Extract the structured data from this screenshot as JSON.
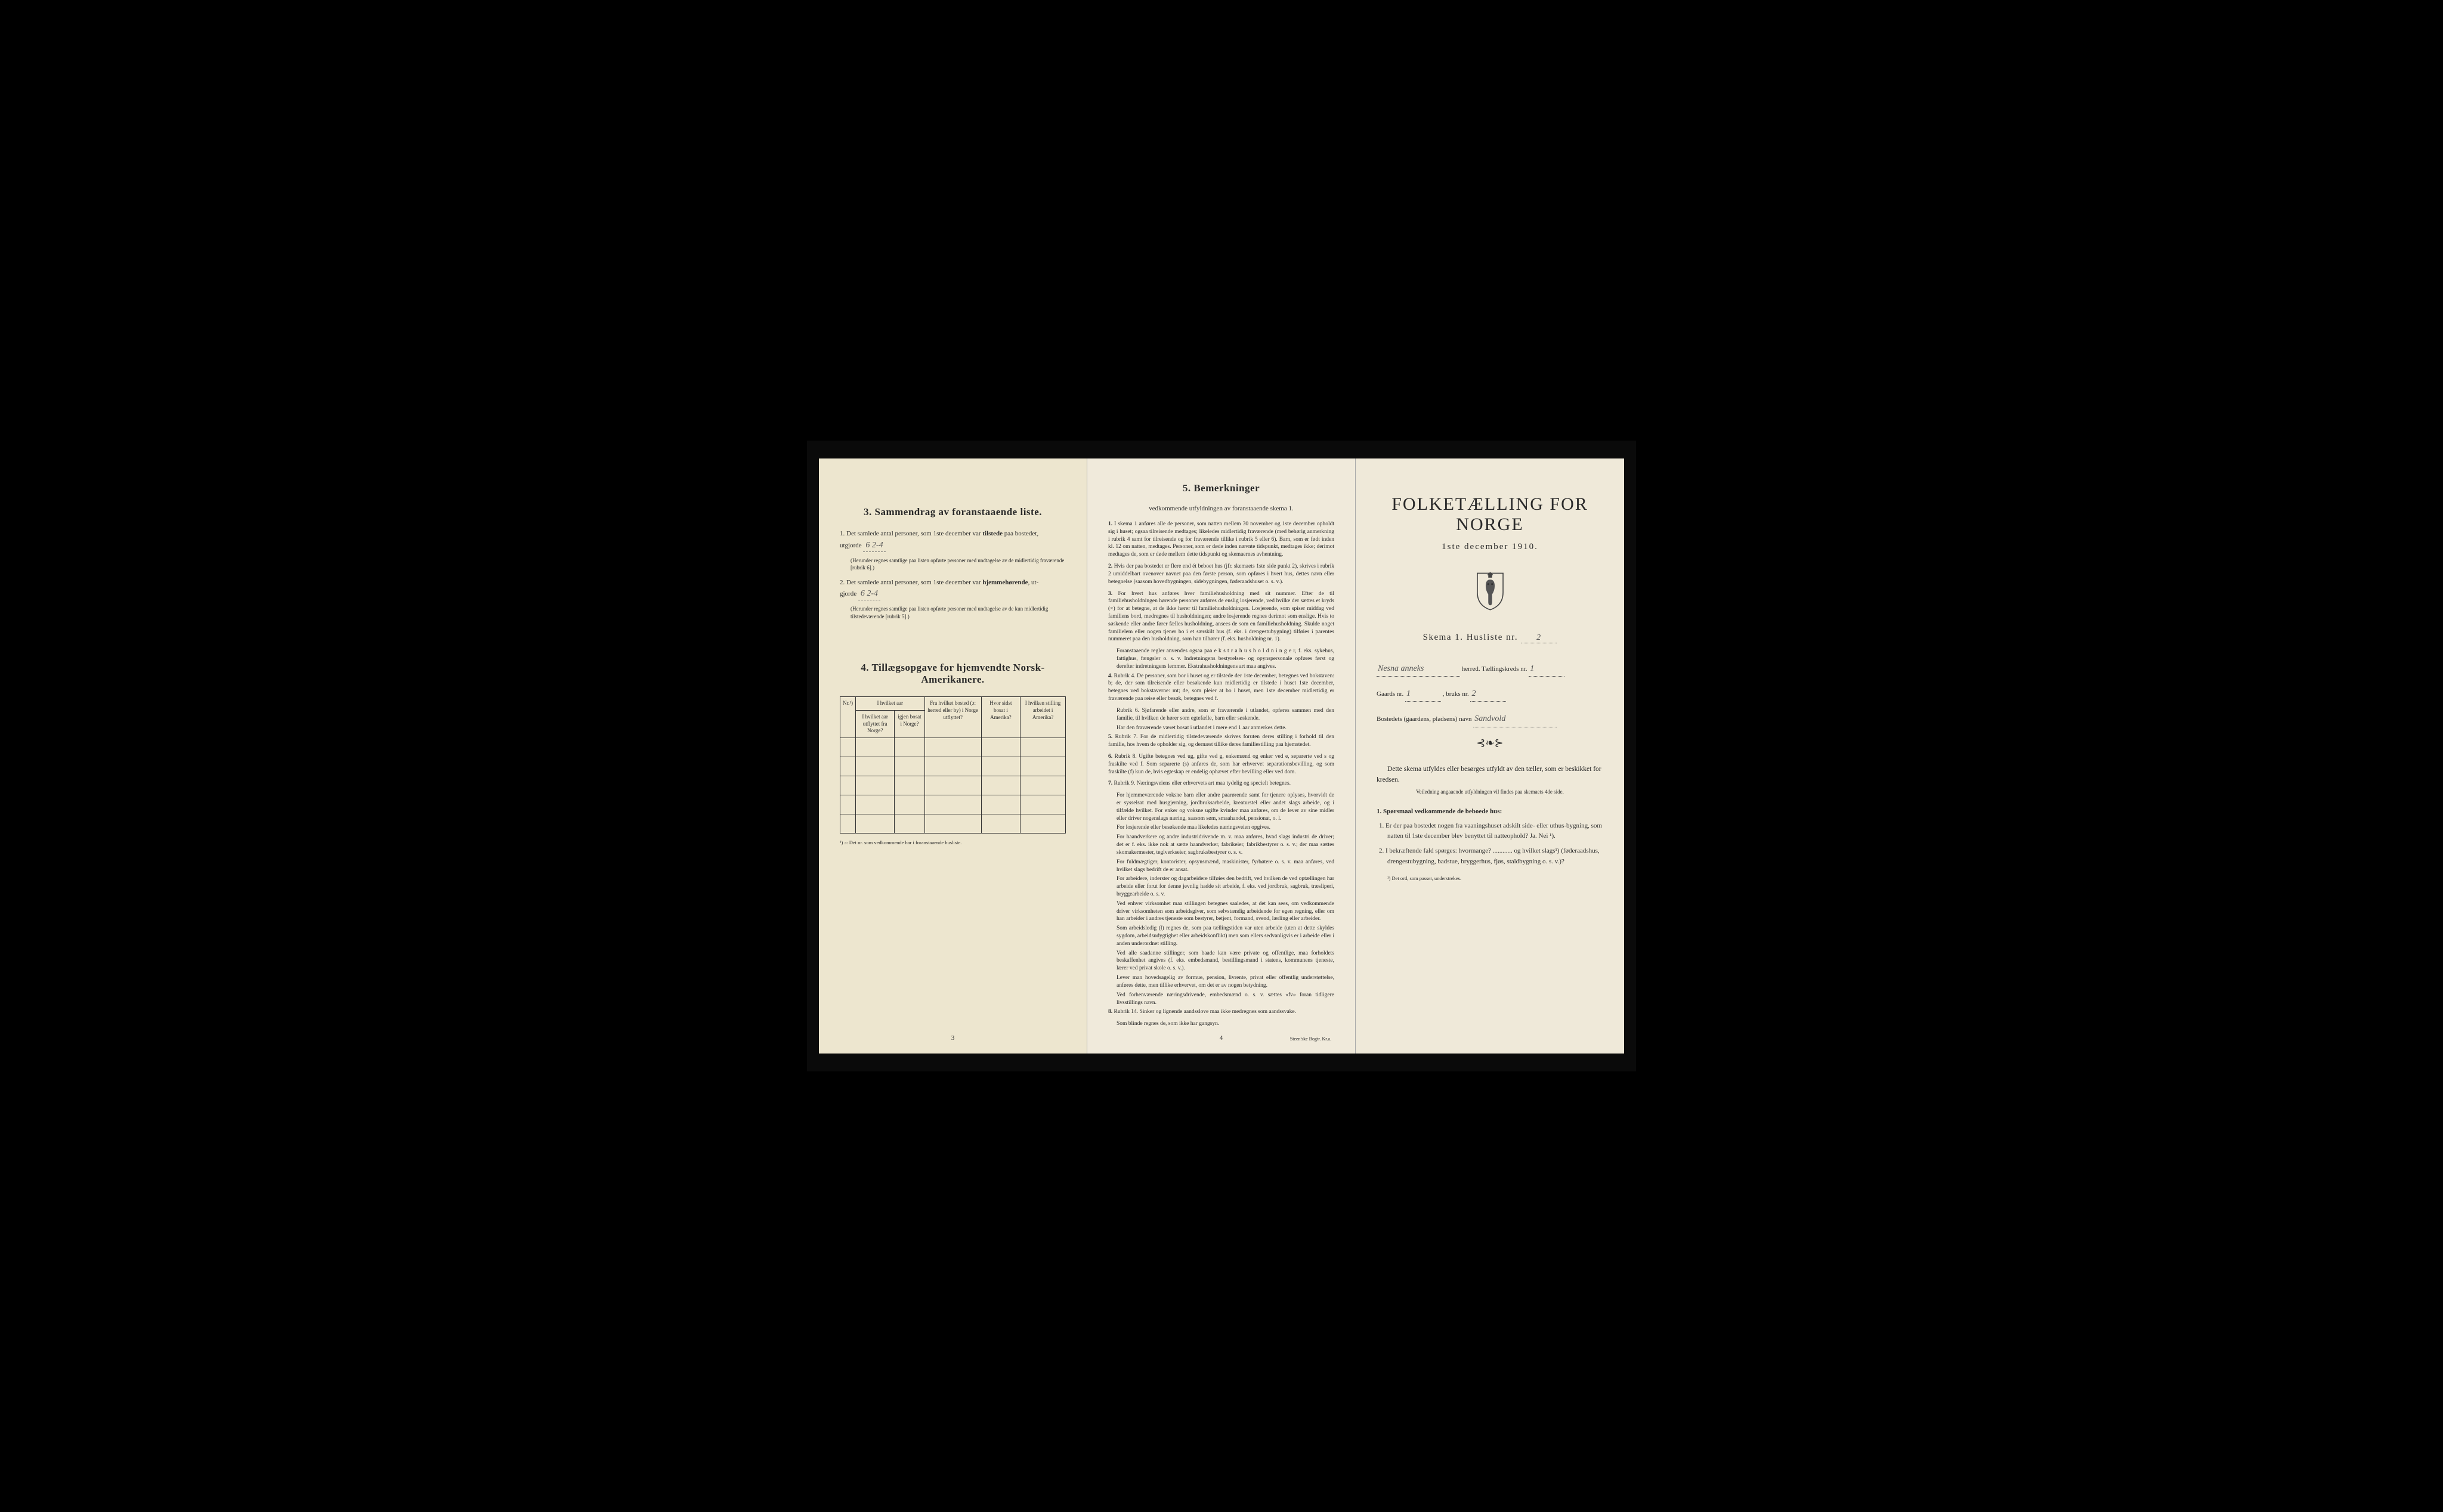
{
  "colors": {
    "page_left_bg": "#ede6cf",
    "page_middle_bg": "#f0eadb",
    "page_right_bg": "#efe9d9",
    "text": "#2a2a2a",
    "handwritten": "#555555",
    "border": "#333333",
    "background": "#000000"
  },
  "typography": {
    "body_font": "Georgia, Times New Roman, serif",
    "handwritten_font": "Brush Script MT, cursive",
    "title_size_pt": 30,
    "section_title_size_pt": 17,
    "body_size_pt": 11,
    "fine_print_size_pt": 9
  },
  "left": {
    "section3_title": "3.   Sammendrag av foranstaaende liste.",
    "item1_prefix": "1.  Det samlede antal personer, som 1ste december var ",
    "item1_bold": "tilstede",
    "item1_suffix": " paa bostedet,",
    "item1_line2": "utgjorde",
    "item1_value": "6   2-4",
    "item1_note": "(Herunder regnes samtlige paa listen opførte personer med undtagelse av de midlertidig fraværende [rubrik 6].)",
    "item2_prefix": "2.  Det samlede antal personer, som 1ste december var ",
    "item2_bold": "hjemmehørende",
    "item2_suffix": ", ut-",
    "item2_line2": "gjorde",
    "item2_value": "6   2-4",
    "item2_note": "(Herunder regnes samtlige paa listen opførte personer med undtagelse av de kun midlertidig tilstedeværende [rubrik 5].)",
    "section4_title": "4.  Tillægsopgave for hjemvendte Norsk-Amerikanere.",
    "table": {
      "columns": [
        "Nr.¹)",
        "I hvilket aar utflyttet fra Norge?",
        "igjen bosat i Norge?",
        "Fra hvilket bosted (ɔ: herred eller by) i Norge utflyttet?",
        "Hvor sidst bosat i Amerika?",
        "I hvilken stilling arbeidet i Amerika?"
      ],
      "col_group_header": "I hvilket aar",
      "blank_rows": 5
    },
    "footnote": "¹) ɔ: Det nr. som vedkommende har i foranstaaende husliste.",
    "page_num": "3"
  },
  "middle": {
    "title": "5.  Bemerkninger",
    "subtitle": "vedkommende utfyldningen av foranstaaende skema 1.",
    "items": [
      {
        "n": "1.",
        "text": "I skema 1 anføres alle de personer, som natten mellem 30 november og 1ste december opholdt sig i huset; ogsaa tilreisende medtages; likeledes midlertidig fraværende (med behørig anmerkning i rubrik 4 samt for tilreisende og for fraværende tillike i rubrik 5 eller 6). Barn, som er født inden kl. 12 om natten, medtages. Personer, som er døde inden nævnte tidspunkt, medtages ikke; derimot medtages de, som er døde mellem dette tidspunkt og skemaernes avhentning."
      },
      {
        "n": "2.",
        "text": "Hvis der paa bostedet er flere end ét beboet hus (jfr. skemaets 1ste side punkt 2), skrives i rubrik 2 umiddelbart ovenover navnet paa den første person, som opføres i hvert hus, dettes navn eller betegnelse (saasom hovedbygningen, sidebygningen, føderaadshuset o. s. v.)."
      },
      {
        "n": "3.",
        "text": "For hvert hus anføres hver familiehusholdning med sit nummer. Efter de til familiehusholdningen hørende personer anføres de enslig losjerende, ved hvilke der sættes et kryds (×) for at betegne, at de ikke hører til familiehusholdningen. Losjerende, som spiser middag ved familiens bord, medregnes til husholdningen; andre losjerende regnes derimot som enslige. Hvis to søskende eller andre fører fælles husholdning, ansees de som en familiehusholdning. Skulde noget familielem eller nogen tjener bo i et særskilt hus (f. eks. i drengestubygning) tilføies i parentes nummeret paa den husholdning, som han tilhører (f. eks. husholdning nr. 1).",
        "sub": [
          "Foranstaaende regler anvendes ogsaa paa e k s t r a h u s h o l d n i n g e r, f. eks. sykehus, fattighus, fængsler o. s. v. Indretningens bestyrelses- og opynspersonale opføres først og derefter indretningens lemmer. Ekstrahusholdningens art maa angives."
        ]
      },
      {
        "n": "4.",
        "text": "Rubrik 4. De personer, som bor i huset og er tilstede der 1ste december, betegnes ved bokstaven: b; de, der som tilreisende eller besøkende kun midlertidig er tilstede i huset 1ste december, betegnes ved bokstaverne: mt; de, som pleier at bo i huset, men 1ste december midlertidig er fraværende paa reise eller besøk, betegnes ved f.",
        "sub": [
          "Rubrik 6. Sjøfarende eller andre, som er fraværende i utlandet, opføres sammen med den familie, til hvilken de hører som egtefælle, barn eller søskende.",
          "Har den fraværende været bosat i utlandet i mere end 1 aar anmerkes dette."
        ]
      },
      {
        "n": "5.",
        "text": "Rubrik 7. For de midlertidig tilstedeværende skrives foruten deres stilling i forhold til den familie, hos hvem de opholder sig, og dernæst tillike deres familiestilling paa hjemstedet."
      },
      {
        "n": "6.",
        "text": "Rubrik 8. Ugifte betegnes ved ug, gifte ved g, enkemænd og enker ved e, separerte ved s og fraskilte ved f. Som separerte (s) anføres de, som har erhvervet separationsbevilling, og som fraskilte (f) kun de, hvis egteskap er endelig ophævet efter bevilling eller ved dom."
      },
      {
        "n": "7.",
        "text": "Rubrik 9. Næringsveiens eller erhvervets art maa tydelig og specielt betegnes.",
        "sub": [
          "For hjemmeværende voksne barn eller andre paarørende samt for tjenere oplyses, hvorvidt de er sysselsat med husgjerning, jordbruksarbeide, kreaturstel eller andet slags arbeide, og i tilfælde hvilket. For enker og voksne ugifte kvinder maa anføres, om de lever av sine midler eller driver nogenslags næring, saasom søm, smaahandel, pensionat, o. l.",
          "For losjerende eller besøkende maa likeledes næringsveien opgives.",
          "For haandverkere og andre industridrivende m. v. maa anføres, hvad slags industri de driver; det er f. eks. ikke nok at sætte haandverker, fabrikeier, fabrikbestyrer o. s. v.; der maa sættes skomakermester, teglverkseier, sagbruksbestyrer o. s. v.",
          "For fuldmægtiger, kontorister, opsynsmænd, maskinister, fyrbøtere o. s. v. maa anføres, ved hvilket slags bedrift de er ansat.",
          "For arbeidere, inderster og dagarbeidere tilføies den bedrift, ved hvilken de ved optællingen har arbeide eller forut for denne jevnlig hadde sit arbeide, f. eks. ved jordbruk, sagbruk, træsliperi, bryggearbeide o. s. v.",
          "Ved enhver virksomhet maa stillingen betegnes saaledes, at det kan sees, om vedkommende driver virksomheten som arbeidsgiver, som selvstændig arbeidende for egen regning, eller om han arbeider i andres tjeneste som bestyrer, betjent, formand, svend, lærling eller arbeider.",
          "Som arbeidsledig (l) regnes de, som paa tællingstiden var uten arbeide (uten at dette skyldes sygdom, arbeidsudygtighet eller arbeidskonflikt) men som ellers sedvanligvis er i arbeide eller i anden underordnet stilling.",
          "Ved alle saadanne stillinger, som baade kan være private og offentlige, maa forholdets beskaffenhet angives (f. eks. embedsmand, bestillingsmand i statens, kommunens tjeneste, lærer ved privat skole o. s. v.).",
          "Lever man hovedsagelig av formue, pension, livrente, privat eller offentlig understøttelse, anføres dette, men tillike erhvervet, om det er av nogen betydning.",
          "Ved forhenværende næringsdrivende, embedsmænd o. s. v. sættes «fv» foran tidligere livsstillings navn."
        ]
      },
      {
        "n": "8.",
        "text": "Rubrik 14. Sinker og lignende aandsslove maa ikke medregnes som aandssvake.",
        "sub": [
          "Som blinde regnes de, som ikke har gangsyn."
        ]
      }
    ],
    "page_num": "4",
    "printer": "Steen'ske Bogtr. Kr.a."
  },
  "right": {
    "title": "FOLKETÆLLING FOR NORGE",
    "date": "1ste december 1910.",
    "skema": "Skema 1.  Husliste nr.",
    "skema_value": "2",
    "herred_label": "herred.  Tællingskreds nr.",
    "herred_name": "Nesna anneks",
    "kreds_value": "1",
    "gaards_label": "Gaards nr.",
    "gaards_value": "1",
    "bruks_label": ", bruks nr.",
    "bruks_value": "2",
    "bosted_label": "Bostedets (gaardens, pladsens) navn",
    "bosted_value": "Sandvold",
    "intro": "Dette skema utfyldes eller besørges utfyldt av den tæller, som er beskikket for kredsen.",
    "intro_sub": "Veiledning angaaende utfyldningen vil findes paa skemaets 4de side.",
    "spors_title": "1. Spørsmaal vedkommende de beboede hus:",
    "spors": [
      "1.  Er der paa bostedet nogen fra vaaningshuset adskilt side- eller uthus-bygning, som natten til 1ste december blev benyttet til natteophold?   Ja.   Nei ¹).",
      "2.  I bekræftende fald spørges: hvormange? ............ og hvilket slags¹) (føderaadshus, drengestubygning, badstue, bryggerhus, fjøs, staldbygning o. s. v.)?"
    ],
    "footnote": "¹) Det ord, som passer, understrekes."
  }
}
